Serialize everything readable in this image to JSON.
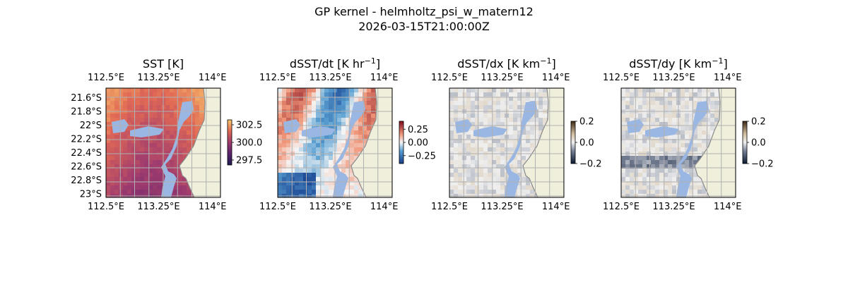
{
  "figure": {
    "title_line1": "GP kernel - helmholtz_psi_w_matern12",
    "title_line2": "2026-03-15T21:00:00Z"
  },
  "colors": {
    "land": "#efefdb",
    "water_mask": "#9ab7e3",
    "coastline": "#8a8a8a",
    "grid": "#b0b0b0"
  },
  "chart_data": [
    {
      "type": "heatmap",
      "title": "SST [K]",
      "title_base": "SST [K]",
      "title_sup": "",
      "title_tail": "",
      "colormap": "plasma-like (dark purple to orange)",
      "x_tick_labels": [
        "112.5°E",
        "113.25°E",
        "114°E"
      ],
      "y_tick_labels": [
        "21.6°S",
        "21.8°S",
        "22°S",
        "22.2°S",
        "22.4°S",
        "22.6°S",
        "22.8°S",
        "23°S"
      ],
      "colorbar_ticks": [
        "302.5",
        "300.0",
        "297.5"
      ],
      "colorbar_range": [
        296.8,
        303.2
      ]
    },
    {
      "type": "heatmap",
      "title": "dSST/dt [K hr−1]",
      "title_base": "dSST/dt [K hr",
      "title_sup": "−1",
      "title_tail": "]",
      "colormap": "RdBu_r (blue to white to red)",
      "x_tick_labels": [
        "112.5°E",
        "113.25°E",
        "114°E"
      ],
      "y_tick_labels": [],
      "colorbar_ticks": [
        "0.25",
        "0.00",
        "−0.25"
      ],
      "colorbar_range": [
        -0.4,
        0.4
      ]
    },
    {
      "type": "heatmap",
      "title": "dSST/dx [K km−1]",
      "title_base": "dSST/dx [K km",
      "title_sup": "−1",
      "title_tail": "]",
      "colormap": "diverging gray-blue to white to tan",
      "x_tick_labels": [
        "112.5°E",
        "113.25°E",
        "114°E"
      ],
      "y_tick_labels": [],
      "colorbar_ticks": [
        "0.2",
        "0.0",
        "−0.2"
      ],
      "colorbar_range": [
        -0.2,
        0.2
      ]
    },
    {
      "type": "heatmap",
      "title": "dSST/dy [K km−1]",
      "title_base": "dSST/dy [K km",
      "title_sup": "−1",
      "title_tail": "]",
      "colormap": "diverging gray-blue to white to tan",
      "x_tick_labels": [
        "112.5°E",
        "113.25°E",
        "114°E"
      ],
      "y_tick_labels": [],
      "colorbar_ticks": [
        "0.2",
        "0.0",
        "−0.2"
      ],
      "colorbar_range": [
        -0.2,
        0.2
      ]
    }
  ]
}
